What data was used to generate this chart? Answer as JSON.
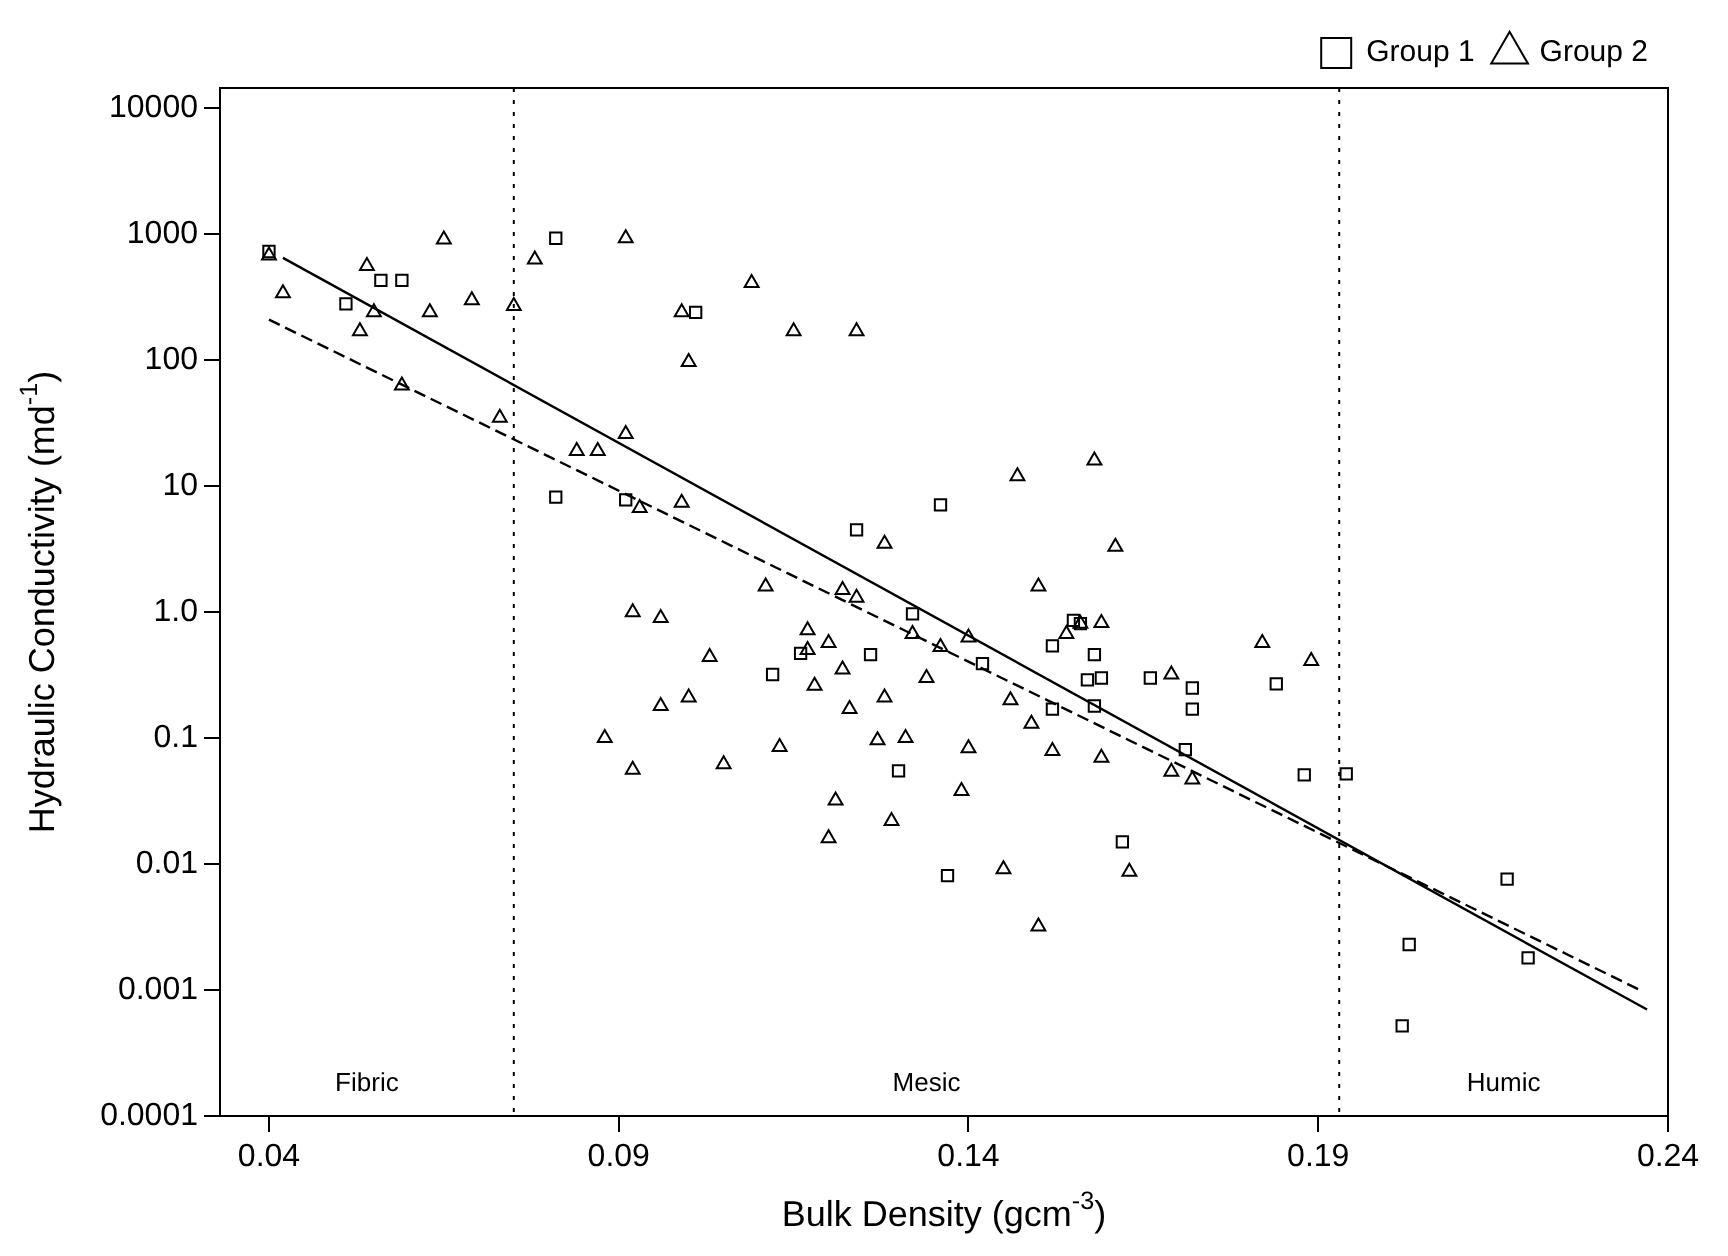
{
  "chart_data": {
    "type": "scatter",
    "xlabel": "Bulk Density (gcm$^{-3}$)",
    "ylabel": "Hydraulic Conductivity (md$^{-1}$)",
    "xlim": [
      0.033,
      0.24
    ],
    "xticks": [
      0.04,
      0.09,
      0.14,
      0.19,
      0.24
    ],
    "ylim": [
      0.0001,
      14500
    ],
    "yticks": [
      10000,
      1000,
      100,
      10,
      {
        "value": 1,
        "label": "1.0"
      },
      0.1,
      0.01,
      0.001,
      0.0001
    ],
    "log": "y",
    "legend": "top right",
    "series": [
      {
        "name": "Group 1",
        "marker": "square",
        "color": "#000000",
        "x": [
          0.136,
          0.124,
          0.156,
          0.101,
          0.081,
          0.059,
          0.056,
          0.051,
          0.04,
          0.091,
          0.081,
          0.116,
          0.112,
          0.184,
          0.172,
          0.172,
          0.166,
          0.155,
          0.158,
          0.159,
          0.157,
          0.158,
          0.152,
          0.152,
          0.142,
          0.132,
          0.126,
          0.13,
          0.188,
          0.194,
          0.171,
          0.162,
          0.137,
          0.217,
          0.22,
          0.203,
          0.202
        ],
        "values": [
          7.1,
          4.5,
          0.81,
          240,
          930,
          430,
          430,
          280,
          730,
          7.8,
          8.2,
          0.47,
          0.32,
          0.27,
          0.25,
          0.17,
          0.3,
          0.86,
          0.46,
          0.3,
          0.29,
          0.18,
          0.54,
          0.17,
          0.39,
          0.97,
          0.46,
          0.055,
          0.051,
          0.052,
          0.081,
          0.015,
          0.0081,
          0.0076,
          0.0018,
          0.0023,
          0.00052
        ]
      },
      {
        "type": "line",
        "line_style": "solid",
        "color": "#000000",
        "x": [
          0.042,
          0.237
        ],
        "values": [
          650,
          0.0007
        ]
      },
      {
        "name": "Group 2",
        "marker": "triangle",
        "color": "#000000",
        "x": [
          0.124,
          0.158,
          0.147,
          0.128,
          0.161,
          0.15,
          0.156,
          0.159,
          0.115,
          0.109,
          0.099,
          0.1,
          0.091,
          0.078,
          0.075,
          0.069,
          0.065,
          0.063,
          0.054,
          0.055,
          0.053,
          0.042,
          0.04,
          0.091,
          0.087,
          0.084,
          0.099,
          0.093,
          0.073,
          0.059,
          0.111,
          0.122,
          0.124,
          0.092,
          0.096,
          0.117,
          0.12,
          0.117,
          0.122,
          0.118,
          0.123,
          0.121,
          0.12,
          0.113,
          0.103,
          0.105,
          0.1,
          0.096,
          0.092,
          0.088,
          0.189,
          0.182,
          0.169,
          0.154,
          0.146,
          0.149,
          0.152,
          0.159,
          0.14,
          0.136,
          0.132,
          0.134,
          0.14,
          0.139,
          0.128,
          0.131,
          0.127,
          0.129,
          0.169,
          0.172,
          0.163,
          0.145,
          0.15
        ],
        "values": [
          170,
          16,
          12,
          3.5,
          3.3,
          1.6,
          0.81,
          0.82,
          170,
          410,
          240,
          97,
          930,
          630,
          270,
          300,
          910,
          240,
          560,
          240,
          170,
          340,
          680,
          26,
          19,
          19,
          7.4,
          6.7,
          35,
          63,
          1.6,
          1.5,
          1.3,
          1.0,
          0.9,
          0.72,
          0.57,
          0.5,
          0.35,
          0.26,
          0.17,
          0.032,
          0.016,
          0.085,
          0.44,
          0.062,
          0.21,
          0.18,
          0.056,
          0.1,
          0.41,
          0.57,
          0.32,
          0.67,
          0.2,
          0.13,
          0.079,
          0.07,
          0.63,
          0.53,
          0.67,
          0.3,
          0.083,
          0.038,
          0.21,
          0.1,
          0.096,
          0.022,
          0.054,
          0.047,
          0.0087,
          0.0091,
          0.0032
        ]
      },
      {
        "type": "line",
        "line_style": "dashed",
        "color": "#000000",
        "x": [
          0.04,
          0.236
        ],
        "values": [
          210,
          0.001
        ]
      }
    ],
    "ref_lines": [
      {
        "axis": "x",
        "value": 0.075,
        "line_style": "dotted"
      },
      {
        "axis": "x",
        "value": 0.193,
        "line_style": "dotted"
      }
    ],
    "annotations": [
      "Fibric",
      "Mesic",
      "Humic"
    ]
  }
}
